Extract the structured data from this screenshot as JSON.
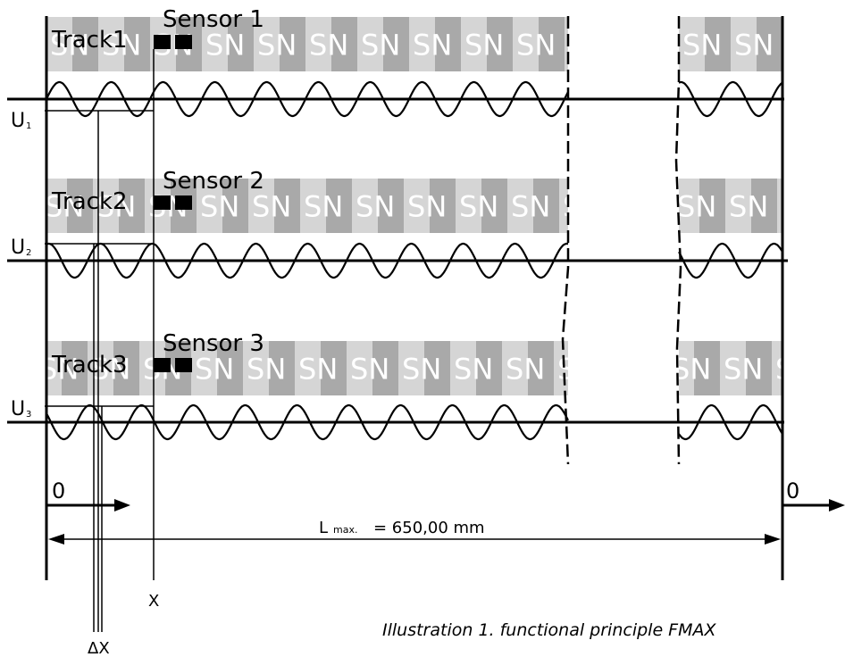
{
  "tracks": [
    {
      "track_label": "Track1",
      "sensor_label": "Sensor 1",
      "voltage_label": "U",
      "voltage_sub": "1",
      "pattern": "SN"
    },
    {
      "track_label": "Track2",
      "sensor_label": "Sensor 2",
      "voltage_label": "U",
      "voltage_sub": "2",
      "pattern": "SN"
    },
    {
      "track_label": "Track3",
      "sensor_label": "Sensor 3",
      "voltage_label": "U",
      "voltage_sub": "3",
      "pattern": "SN"
    }
  ],
  "axis": {
    "origin_left": "0",
    "origin_right": "0",
    "position_label": "X",
    "delta_label": "ΔX",
    "length_label": "L",
    "length_sub": "max.",
    "length_value": "= 650,00 mm"
  },
  "caption": "Illustration 1. functional principle FMAX",
  "colors": {
    "tape_dark": "#a9a9a9",
    "tape_light": "#d5d5d5",
    "ink": "#000000",
    "tape_text": "#ffffff"
  }
}
